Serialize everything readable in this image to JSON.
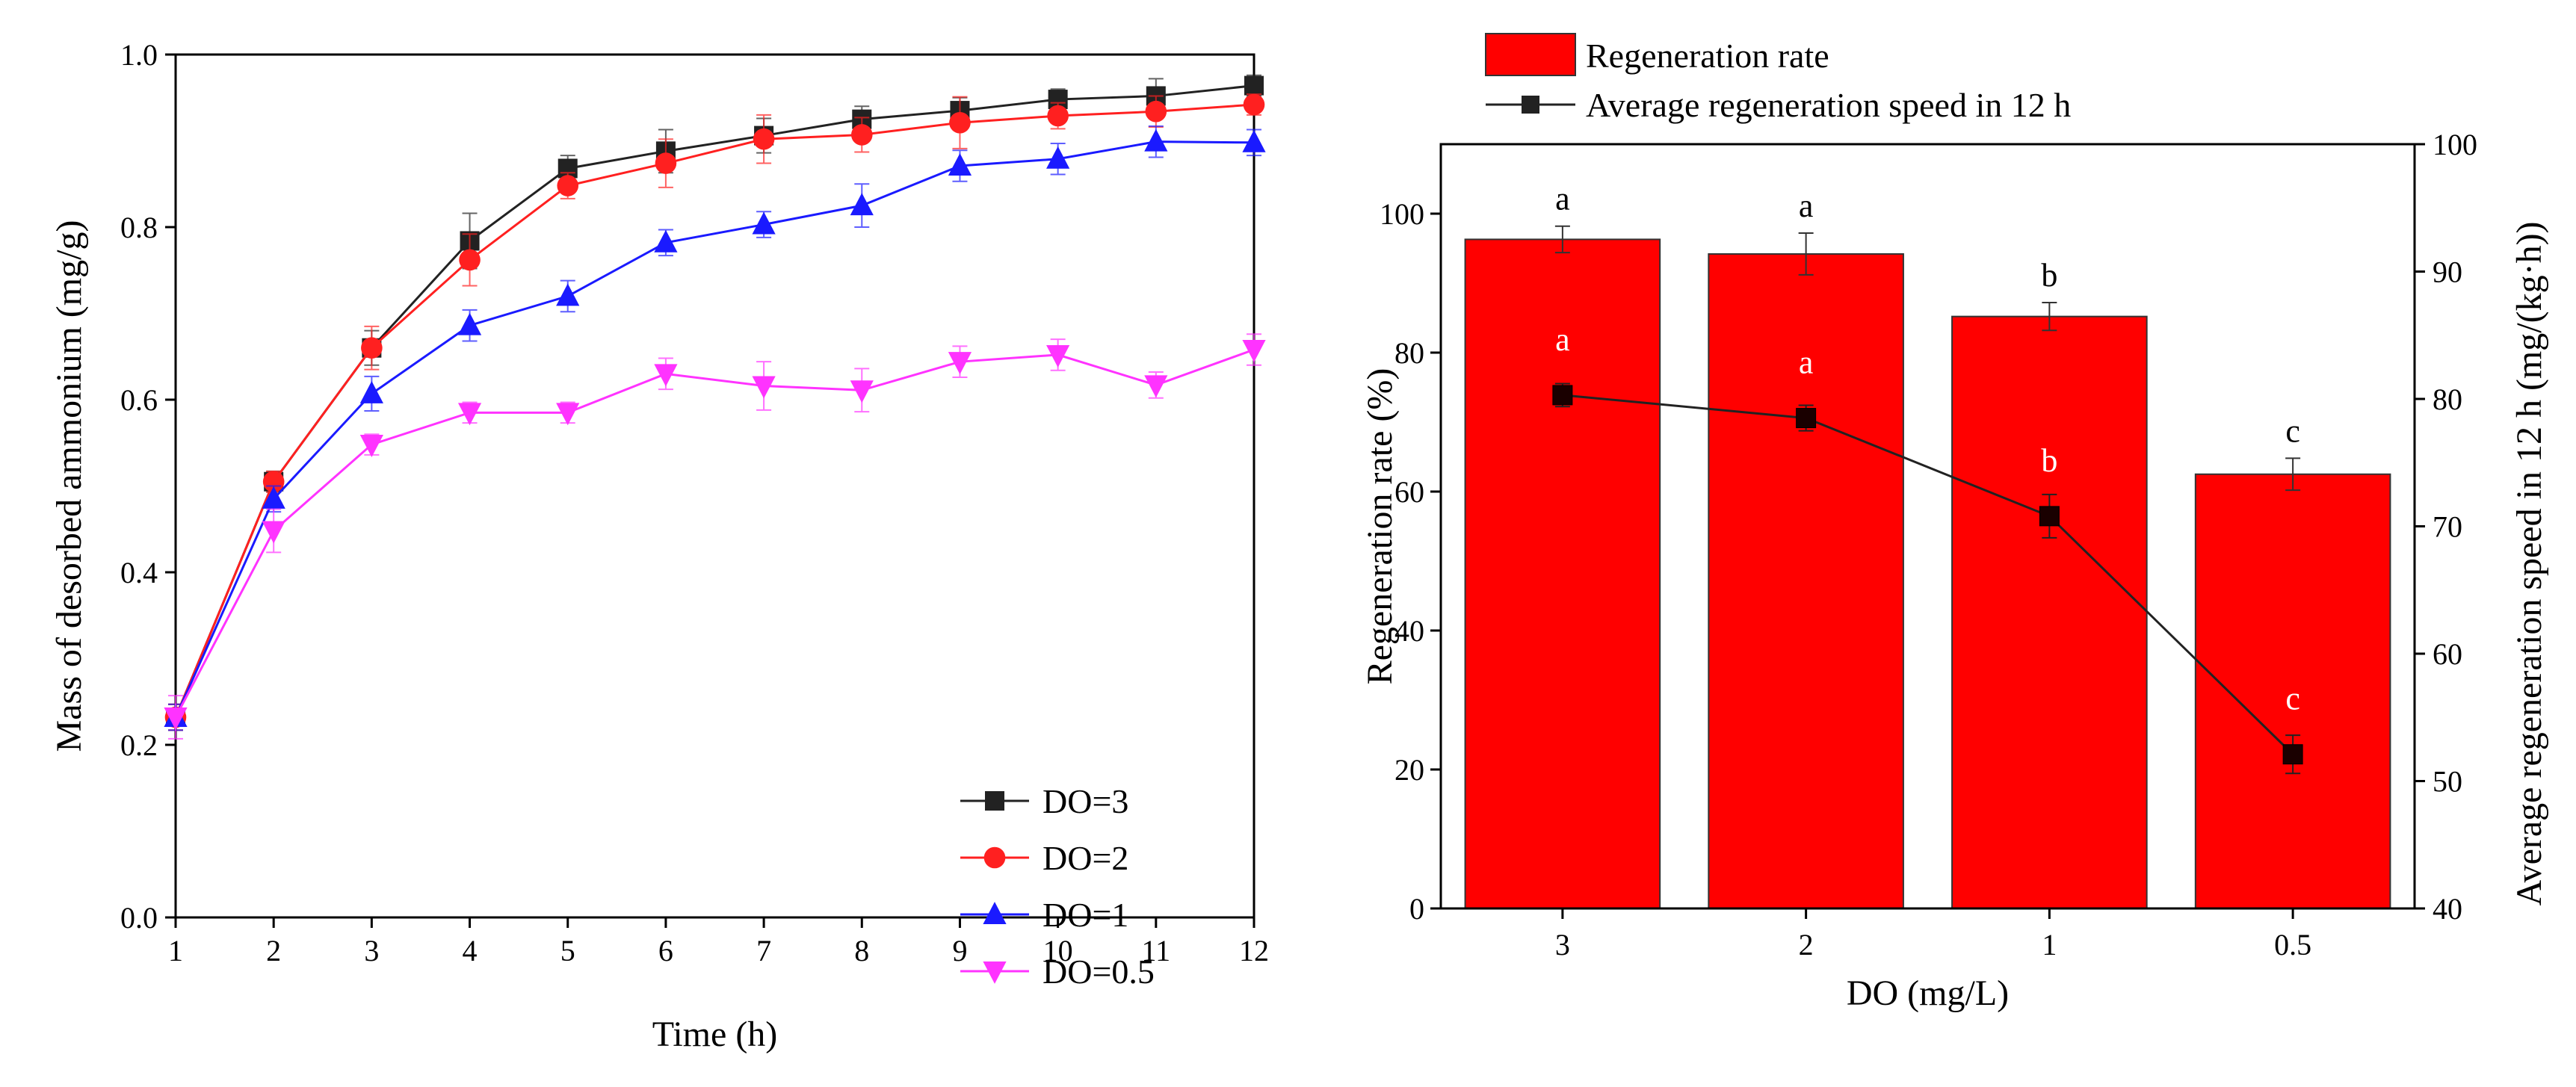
{
  "chart_data": [
    {
      "type": "line",
      "xlabel": "Time (h)",
      "ylabel": "Mass of desorbed ammonium (mg/g)",
      "xlim": [
        1,
        12
      ],
      "ylim": [
        0,
        1.0
      ],
      "xticks": [
        1,
        2,
        3,
        4,
        5,
        6,
        7,
        8,
        9,
        10,
        11,
        12
      ],
      "yticks": [
        "0.0",
        "0.2",
        "0.4",
        "0.6",
        "0.8",
        "1.0"
      ],
      "legend_position": "bottom-right",
      "x": [
        1,
        2,
        3,
        4,
        5,
        6,
        7,
        8,
        9,
        10,
        11,
        12
      ],
      "series": [
        {
          "name": "DO=3",
          "color": "#222222",
          "marker": "square",
          "values": [
            0.232,
            0.505,
            0.66,
            0.784,
            0.868,
            0.888,
            0.906,
            0.925,
            0.935,
            0.948,
            0.952,
            0.964
          ],
          "errors": [
            0.015,
            0.012,
            0.02,
            0.032,
            0.015,
            0.025,
            0.02,
            0.015,
            0.015,
            0.012,
            0.02,
            0.012
          ]
        },
        {
          "name": "DO=2",
          "color": "#ff2020",
          "marker": "circle",
          "values": [
            0.232,
            0.505,
            0.66,
            0.762,
            0.848,
            0.874,
            0.902,
            0.907,
            0.921,
            0.929,
            0.934,
            0.942
          ],
          "errors": [
            0.015,
            0.012,
            0.025,
            0.03,
            0.015,
            0.028,
            0.028,
            0.02,
            0.03,
            0.015,
            0.018,
            0.012
          ]
        },
        {
          "name": "DO=1",
          "color": "#1a1aff",
          "marker": "triangle-up",
          "values": [
            0.232,
            0.485,
            0.607,
            0.686,
            0.72,
            0.782,
            0.803,
            0.825,
            0.871,
            0.879,
            0.899,
            0.898
          ],
          "errors": [
            0.015,
            0.015,
            0.02,
            0.018,
            0.018,
            0.015,
            0.015,
            0.025,
            0.018,
            0.018,
            0.018,
            0.015
          ]
        },
        {
          "name": "DO=0.5",
          "color": "#ff33ff",
          "marker": "triangle-down",
          "values": [
            0.232,
            0.448,
            0.548,
            0.585,
            0.585,
            0.63,
            0.616,
            0.611,
            0.644,
            0.652,
            0.617,
            0.658
          ],
          "errors": [
            0.025,
            0.025,
            0.012,
            0.012,
            0.012,
            0.018,
            0.028,
            0.025,
            0.018,
            0.018,
            0.015,
            0.018
          ]
        }
      ]
    },
    {
      "type": "bar",
      "xlabel": "DO (mg/L)",
      "ylabel": "Regeneration rate (%)",
      "y2label": "Average regeneration speed in 12 h (mg/(kg·h))",
      "categories": [
        "3",
        "2",
        "1",
        "0.5"
      ],
      "ylim": [
        0,
        110
      ],
      "yticks": [
        "0",
        "20",
        "40",
        "60",
        "80",
        "100"
      ],
      "y2lim": [
        40,
        100
      ],
      "y2ticks": [
        "40",
        "50",
        "60",
        "70",
        "80",
        "90",
        "100"
      ],
      "legend_position": "top",
      "series": [
        {
          "name": "Regeneration rate",
          "type": "bar",
          "color": "#ff0000",
          "values": [
            96.3,
            94.2,
            85.2,
            62.5
          ],
          "errors": [
            1.9,
            3.0,
            2.0,
            2.3
          ],
          "letters": [
            "a",
            "a",
            "b",
            "c"
          ]
        },
        {
          "name": "Average regeneration speed in 12 h",
          "type": "line",
          "axis": "right",
          "color": "#222222",
          "values": [
            80.3,
            78.5,
            70.8,
            52.1
          ],
          "errors": [
            0.9,
            1.0,
            1.7,
            1.5
          ],
          "letters": [
            "a",
            "a",
            "b",
            "c"
          ]
        }
      ]
    }
  ]
}
